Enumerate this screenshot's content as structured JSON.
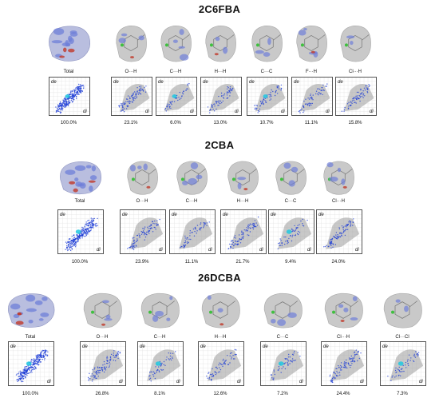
{
  "sections": [
    {
      "title": "2C6FBA",
      "surfaces": [
        {
          "label": "Total",
          "kind": "total"
        },
        {
          "label": "O···H",
          "kind": "partial"
        },
        {
          "label": "C···H",
          "kind": "partial"
        },
        {
          "label": "H···H",
          "kind": "partial"
        },
        {
          "label": "C···C",
          "kind": "partial"
        },
        {
          "label": "F···H",
          "kind": "partial"
        },
        {
          "label": "Cl···H",
          "kind": "partial"
        }
      ],
      "fingerprints": [
        {
          "axis_de": "de",
          "axis_di": "di",
          "percent": "100.0%",
          "fill": 1.0
        },
        {
          "axis_de": "de",
          "axis_di": "di",
          "percent": "23.1%",
          "fill": 0.231
        },
        {
          "axis_de": "de",
          "axis_di": "di",
          "percent": "6.0%",
          "fill": 0.06
        },
        {
          "axis_de": "de",
          "axis_di": "di",
          "percent": "13.0%",
          "fill": 0.13
        },
        {
          "axis_de": "de",
          "axis_di": "di",
          "percent": "10.7%",
          "fill": 0.107
        },
        {
          "axis_de": "de",
          "axis_di": "di",
          "percent": "11.1%",
          "fill": 0.111
        },
        {
          "axis_de": "de",
          "axis_di": "di",
          "percent": "15.8%",
          "fill": 0.158
        }
      ]
    },
    {
      "title": "2CBA",
      "surfaces": [
        {
          "label": "Total",
          "kind": "total"
        },
        {
          "label": "O···H",
          "kind": "partial"
        },
        {
          "label": "C···H",
          "kind": "partial"
        },
        {
          "label": "H···H",
          "kind": "partial"
        },
        {
          "label": "C···C",
          "kind": "partial"
        },
        {
          "label": "Cl···H",
          "kind": "partial"
        }
      ],
      "fingerprints": [
        {
          "axis_de": "de",
          "axis_di": "di",
          "percent": "100.0%",
          "fill": 1.0
        },
        {
          "axis_de": "de",
          "axis_di": "di",
          "percent": "23.9%",
          "fill": 0.239
        },
        {
          "axis_de": "de",
          "axis_di": "di",
          "percent": "11.1%",
          "fill": 0.111
        },
        {
          "axis_de": "de",
          "axis_di": "di",
          "percent": "21.7%",
          "fill": 0.217
        },
        {
          "axis_de": "de",
          "axis_di": "di",
          "percent": "9.4%",
          "fill": 0.094
        },
        {
          "axis_de": "de",
          "axis_di": "di",
          "percent": "24.0%",
          "fill": 0.24
        }
      ]
    },
    {
      "title": "26DCBA",
      "surfaces": [
        {
          "label": "Total",
          "kind": "total"
        },
        {
          "label": "O···H",
          "kind": "partial"
        },
        {
          "label": "C···H",
          "kind": "partial"
        },
        {
          "label": "H···H",
          "kind": "partial"
        },
        {
          "label": "C···C",
          "kind": "partial"
        },
        {
          "label": "Cl···H",
          "kind": "partial"
        },
        {
          "label": "Cl···Cl",
          "kind": "partial"
        }
      ],
      "fingerprints": [
        {
          "axis_de": "de",
          "axis_di": "di",
          "percent": "100.0%",
          "fill": 1.0
        },
        {
          "axis_de": "de",
          "axis_di": "di",
          "percent": "26.8%",
          "fill": 0.268
        },
        {
          "axis_de": "de",
          "axis_di": "di",
          "percent": "8.1%",
          "fill": 0.081
        },
        {
          "axis_de": "de",
          "axis_di": "di",
          "percent": "12.6%",
          "fill": 0.126
        },
        {
          "axis_de": "de",
          "axis_di": "di",
          "percent": "7.2%",
          "fill": 0.072
        },
        {
          "axis_de": "de",
          "axis_di": "di",
          "percent": "24.4%",
          "fill": 0.244
        },
        {
          "axis_de": "de",
          "axis_di": "di",
          "percent": "7.3%",
          "fill": 0.073
        }
      ]
    }
  ],
  "colors": {
    "surface_grey": "#c9c9c9",
    "surface_blue": "#6f7fd8",
    "surface_red": "#c0392b",
    "fingerprint_blue": "#1f3fd6",
    "fingerprint_cyan": "#20c8e0",
    "fingerprint_grey": "#9a9a9a",
    "atom_green": "#3fbf3f"
  }
}
